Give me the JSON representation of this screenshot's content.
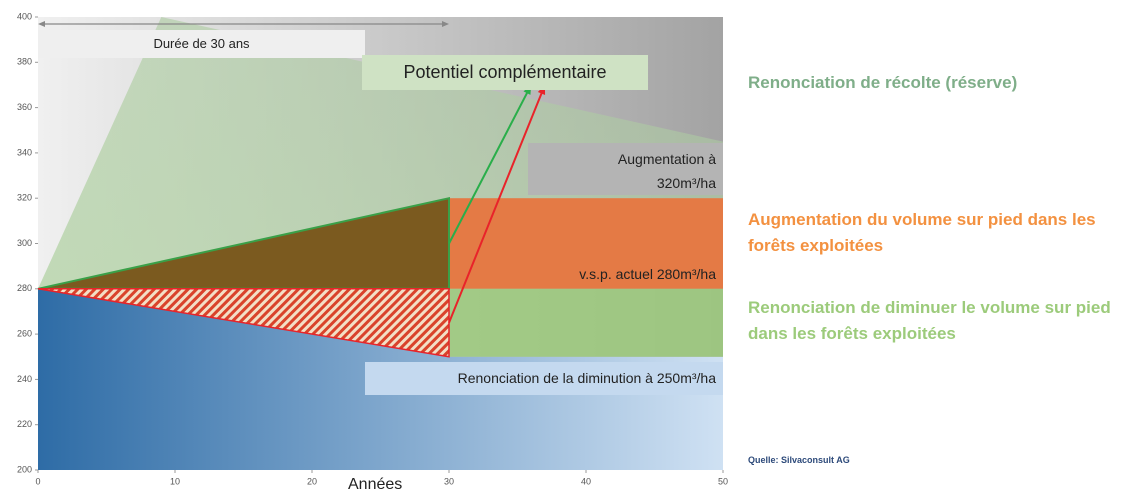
{
  "chart_data": {
    "type": "scenario",
    "x_label": "Années",
    "xlim": [
      0,
      50
    ],
    "ylim": [
      200,
      400
    ],
    "xticks": [
      0,
      10,
      20,
      30,
      40,
      50
    ],
    "yticks": [
      200,
      220,
      240,
      260,
      280,
      300,
      320,
      340,
      360,
      380,
      400
    ],
    "series": [
      {
        "name": "Renonciation de récolte (réserve)",
        "color": "#7fae89",
        "x": [
          0,
          9,
          50
        ],
        "values": [
          280,
          400,
          345
        ]
      },
      {
        "name": "Augmentation du volume sur pied dans les forêts exploitées",
        "color": "#f39140",
        "x": [
          0,
          30
        ],
        "values": [
          280,
          320
        ]
      },
      {
        "name": "Renonciation de diminuer le volume sur pied dans les forêts exploitées",
        "color": "#9ccb7b",
        "x": [
          0,
          30
        ],
        "values": [
          280,
          250
        ]
      }
    ],
    "arrows": [
      {
        "color": "#2aae4a",
        "x": [
          30,
          36
        ],
        "values": [
          300,
          370
        ]
      },
      {
        "color": "#e8232a",
        "x": [
          30,
          37
        ],
        "values": [
          265,
          370
        ]
      }
    ],
    "annotations": {
      "duration": "Durée de 30 ans",
      "potential": "Potentiel complémentaire",
      "increase": "Augmentation à\n320m³/ha",
      "current": "v.s.p. actuel 280m³/ha",
      "decrease": "Renonciation de la diminution à 250m³/ha"
    },
    "source": "Quelle: Silvaconsult AG"
  }
}
